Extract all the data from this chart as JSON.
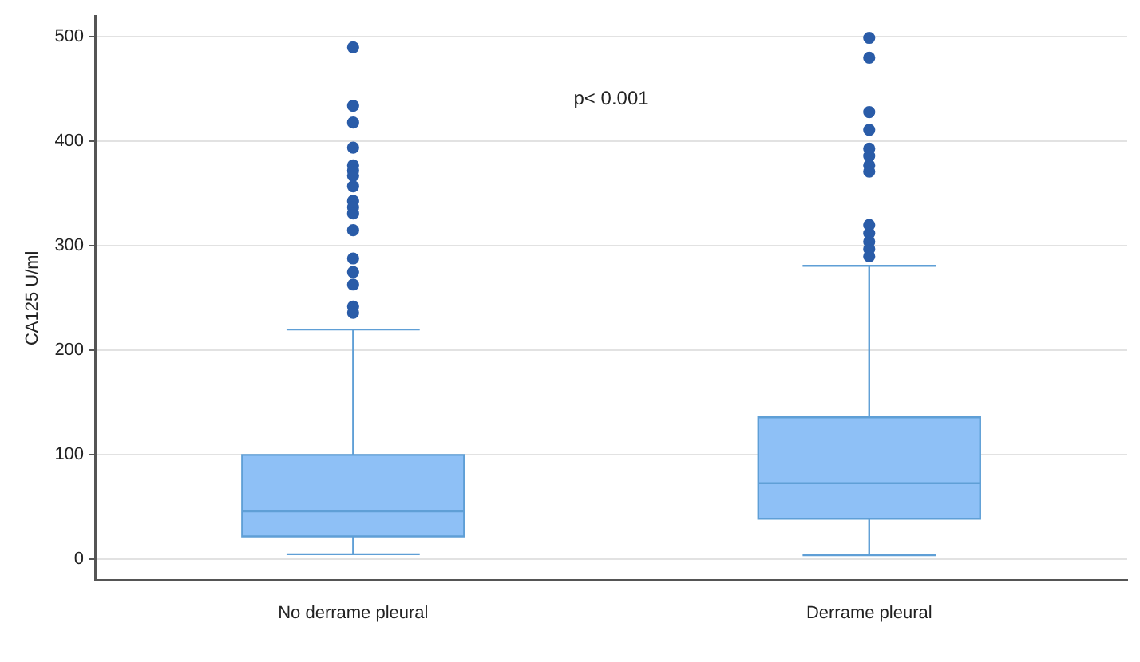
{
  "chart_data": {
    "type": "box",
    "ylabel": "CA125 U/ml",
    "categories": [
      "No derrame pleural",
      "Derrame pleural"
    ],
    "boxes": [
      {
        "low": 5,
        "q1": 22,
        "median": 46,
        "q3": 100,
        "high": 220,
        "outliers": [
          490,
          434,
          418,
          394,
          377,
          372,
          367,
          357,
          343,
          337,
          331,
          315,
          288,
          275,
          263,
          242,
          236
        ]
      },
      {
        "low": 4,
        "q1": 39,
        "median": 73,
        "q3": 136,
        "high": 281,
        "outliers": [
          499,
          480,
          428,
          411,
          393,
          386,
          377,
          371,
          320,
          312,
          304,
          297,
          290
        ]
      }
    ],
    "color": "#8ec0f6",
    "annotations": [
      "p< 0.001"
    ],
    "ylim": [
      -20,
      520
    ],
    "yticks": [
      0,
      100,
      200,
      300,
      400,
      500
    ],
    "grid": "y",
    "legend": false
  }
}
